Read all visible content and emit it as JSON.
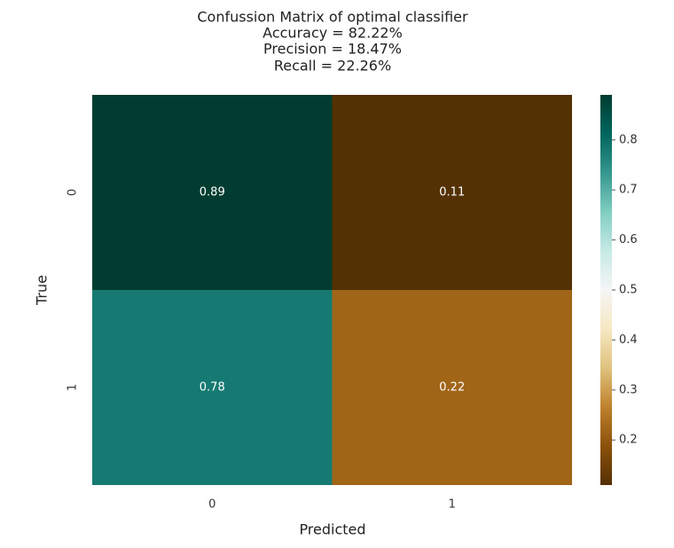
{
  "chart_data": {
    "type": "heatmap",
    "title": "Confussion Matrix of optimal classifier",
    "subtitle_lines": [
      "Accuracy = 82.22%",
      "Precision = 18.47%",
      "Recall = 22.26%"
    ],
    "x_label": "Predicted",
    "y_label": "True",
    "x_categories": [
      "0",
      "1"
    ],
    "y_categories": [
      "0",
      "1"
    ],
    "values": [
      [
        0.89,
        0.11
      ],
      [
        0.78,
        0.22
      ]
    ],
    "colorbar_lim": [
      0.11,
      0.89
    ],
    "colorbar_ticks": [
      0.2,
      0.3,
      0.4,
      0.5,
      0.6,
      0.7,
      0.8
    ],
    "colormap": [
      "#543005",
      "#8c510a",
      "#bf812d",
      "#dfc27d",
      "#f6e8c3",
      "#f5f5f5",
      "#c7eae5",
      "#80cdc1",
      "#35978f",
      "#01665e",
      "#003c30"
    ]
  }
}
